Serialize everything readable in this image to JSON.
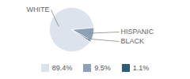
{
  "chart_data": {
    "type": "pie",
    "categories": [
      "WHITE",
      "HISPANIC",
      "BLACK"
    ],
    "values": [
      89.4,
      9.5,
      1.1
    ],
    "value_labels": [
      "89.4%",
      "9.5%",
      "1.1%"
    ],
    "colors": [
      "#dde3ec",
      "#8da2b6",
      "#2e5d78"
    ],
    "legend": "bottom"
  }
}
